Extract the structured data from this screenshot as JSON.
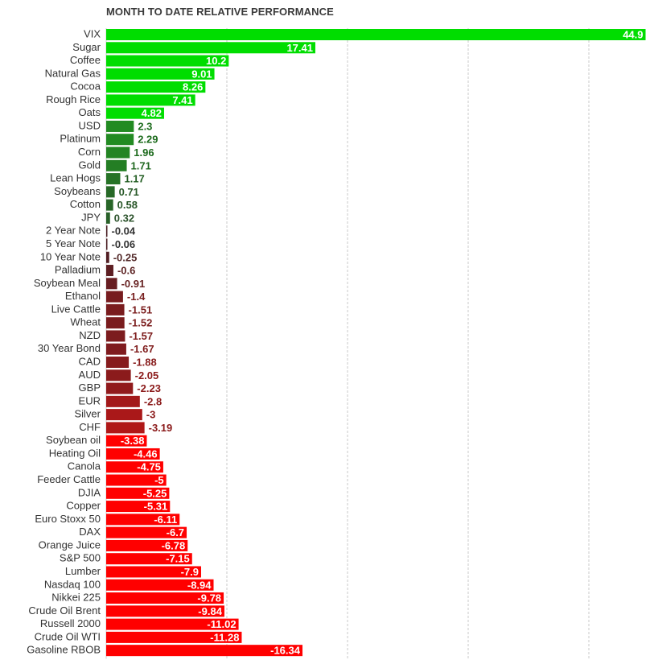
{
  "chart_data": {
    "type": "bar",
    "orientation": "horizontal",
    "title": "MONTH TO DATE RELATIVE PERFORMANCE",
    "xlabel": "",
    "ylabel": "",
    "grid": true,
    "categories": [
      "VIX",
      "Sugar",
      "Coffee",
      "Natural Gas",
      "Cocoa",
      "Rough Rice",
      "Oats",
      "USD",
      "Platinum",
      "Corn",
      "Gold",
      "Lean Hogs",
      "Soybeans",
      "Cotton",
      "JPY",
      "2 Year Note",
      "5 Year Note",
      "10 Year Note",
      "Palladium",
      "Soybean Meal",
      "Ethanol",
      "Live Cattle",
      "Wheat",
      "NZD",
      "30 Year Bond",
      "CAD",
      "AUD",
      "GBP",
      "EUR",
      "Silver",
      "CHF",
      "Soybean oil",
      "Heating Oil",
      "Canola",
      "Feeder Cattle",
      "DJIA",
      "Copper",
      "Euro Stoxx 50",
      "DAX",
      "Orange Juice",
      "S&P 500",
      "Lumber",
      "Nasdaq 100",
      "Nikkei 225",
      "Crude Oil Brent",
      "Russell 2000",
      "Crude Oil WTI",
      "Gasoline RBOB"
    ],
    "values": [
      44.9,
      17.41,
      10.2,
      9.01,
      8.26,
      7.41,
      4.82,
      2.3,
      2.29,
      1.96,
      1.71,
      1.17,
      0.71,
      0.58,
      0.32,
      -0.04,
      -0.06,
      -0.25,
      -0.6,
      -0.91,
      -1.4,
      -1.51,
      -1.52,
      -1.57,
      -1.67,
      -1.88,
      -2.05,
      -2.23,
      -2.8,
      -3,
      -3.19,
      -3.38,
      -4.46,
      -4.75,
      -5,
      -5.25,
      -5.31,
      -6.11,
      -6.7,
      -6.78,
      -7.15,
      -7.9,
      -8.94,
      -9.78,
      -9.84,
      -11.02,
      -11.28,
      -16.34
    ],
    "value_labels": [
      "44.9",
      "17.41",
      "10.2",
      "9.01",
      "8.26",
      "7.41",
      "4.82",
      "2.3",
      "2.29",
      "1.96",
      "1.71",
      "1.17",
      "0.71",
      "0.58",
      "0.32",
      "-0.04",
      "-0.06",
      "-0.25",
      "-0.6",
      "-0.91",
      "-1.4",
      "-1.51",
      "-1.52",
      "-1.57",
      "-1.67",
      "-1.88",
      "-2.05",
      "-2.23",
      "-2.8",
      "-3",
      "-3.19",
      "-3.38",
      "-4.46",
      "-4.75",
      "-5",
      "-5.25",
      "-5.31",
      "-6.11",
      "-6.7",
      "-6.78",
      "-7.15",
      "-7.9",
      "-8.94",
      "-9.78",
      "-9.84",
      "-11.02",
      "-11.28",
      "-16.34"
    ],
    "colors": {
      "strong_positive": "#00dd00",
      "weak_positive": "#2a5a2a",
      "weak_negative": "#4a1f24",
      "strong_negative": "#ff0000",
      "label_text_light": "#ffffff",
      "label_text_dark_positive": "#1c6b1c",
      "label_text_dark_negative": "#8b1a1a",
      "label_text_neutral": "#333333"
    }
  }
}
